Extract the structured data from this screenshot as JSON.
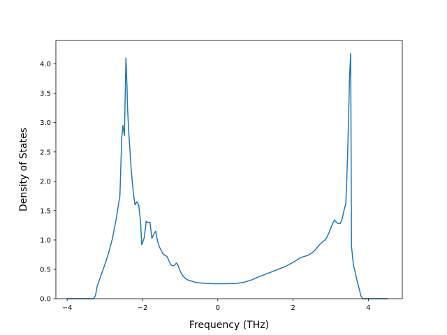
{
  "chart_data": {
    "type": "line",
    "title": "",
    "xlabel": "Frequency (THz)",
    "ylabel": "Density of States",
    "xlim": [
      -4.3,
      4.9
    ],
    "ylim": [
      0.0,
      4.4
    ],
    "x_ticks": [
      -4,
      -2,
      0,
      2,
      4
    ],
    "x_tick_labels": [
      "−4",
      "−2",
      "0",
      "2",
      "4"
    ],
    "y_ticks": [
      0.0,
      0.5,
      1.0,
      1.5,
      2.0,
      2.5,
      3.0,
      3.5,
      4.0
    ],
    "y_tick_labels": [
      "0.0",
      "0.5",
      "1.0",
      "1.5",
      "2.0",
      "2.5",
      "3.0",
      "3.5",
      "4.0"
    ],
    "grid": false,
    "legend": "none",
    "series": [
      {
        "color": "#1f77b4",
        "x": [
          -4.0,
          -3.5,
          -3.3,
          -3.25,
          -3.2,
          -3.1,
          -3.0,
          -2.9,
          -2.8,
          -2.7,
          -2.6,
          -2.55,
          -2.52,
          -2.48,
          -2.44,
          -2.41,
          -2.4,
          -2.37,
          -2.3,
          -2.25,
          -2.2,
          -2.15,
          -2.1,
          -2.05,
          -2.02,
          -2.0,
          -1.95,
          -1.9,
          -1.87,
          -1.8,
          -1.75,
          -1.7,
          -1.65,
          -1.6,
          -1.55,
          -1.5,
          -1.45,
          -1.4,
          -1.35,
          -1.25,
          -1.2,
          -1.15,
          -1.1,
          -1.05,
          -1.0,
          -0.95,
          -0.9,
          -0.85,
          -0.8,
          -0.7,
          -0.6,
          -0.5,
          -0.4,
          -0.3,
          -0.2,
          -0.1,
          0.0,
          0.2,
          0.4,
          0.5,
          0.6,
          0.7,
          0.8,
          0.9,
          1.0,
          1.2,
          1.4,
          1.6,
          1.8,
          2.0,
          2.1,
          2.2,
          2.3,
          2.4,
          2.5,
          2.6,
          2.7,
          2.8,
          2.85,
          2.9,
          2.95,
          3.0,
          3.05,
          3.1,
          3.15,
          3.2,
          3.25,
          3.3,
          3.35,
          3.4,
          3.42,
          3.45,
          3.47,
          3.5,
          3.53,
          3.55,
          3.6,
          3.65,
          3.7,
          3.75,
          3.8,
          3.85,
          4.0,
          4.5
        ],
        "values": [
          0.0,
          0.0,
          0.0,
          0.05,
          0.22,
          0.4,
          0.58,
          0.78,
          1.02,
          1.35,
          1.75,
          2.75,
          2.95,
          2.78,
          4.1,
          3.6,
          3.3,
          2.9,
          2.2,
          1.85,
          1.6,
          1.65,
          1.6,
          1.3,
          0.92,
          0.95,
          1.05,
          1.32,
          1.3,
          1.3,
          1.03,
          1.1,
          1.15,
          0.98,
          0.88,
          0.82,
          0.76,
          0.74,
          0.72,
          0.58,
          0.56,
          0.57,
          0.61,
          0.56,
          0.47,
          0.41,
          0.37,
          0.34,
          0.32,
          0.3,
          0.28,
          0.27,
          0.265,
          0.26,
          0.258,
          0.256,
          0.255,
          0.255,
          0.258,
          0.26,
          0.27,
          0.28,
          0.3,
          0.32,
          0.35,
          0.4,
          0.45,
          0.5,
          0.55,
          0.62,
          0.66,
          0.7,
          0.72,
          0.74,
          0.78,
          0.84,
          0.92,
          0.98,
          1.0,
          1.05,
          1.12,
          1.2,
          1.28,
          1.34,
          1.3,
          1.28,
          1.28,
          1.35,
          1.5,
          1.62,
          1.92,
          2.5,
          3.0,
          3.8,
          4.18,
          0.9,
          0.58,
          0.45,
          0.3,
          0.18,
          0.05,
          0.0,
          0.0,
          0.0
        ]
      }
    ]
  }
}
